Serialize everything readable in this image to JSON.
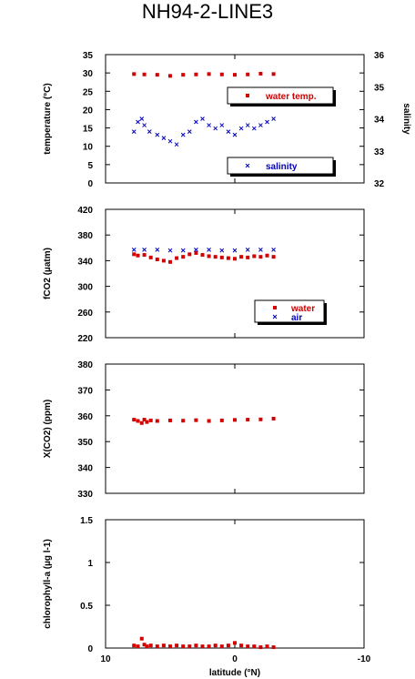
{
  "title": "NH94-2-LINE3",
  "x_axis": {
    "label": "latitude (°N)",
    "range": [
      10,
      -10
    ],
    "ticks": [
      10,
      0,
      -10
    ]
  },
  "chart_data": [
    {
      "type": "scatter",
      "ylabel": "temperature (°C)",
      "ylim": [
        0,
        35
      ],
      "yticks": [
        0,
        5,
        10,
        15,
        20,
        25,
        30,
        35
      ],
      "y2label": "salinity",
      "y2lim": [
        32,
        36
      ],
      "y2ticks": [
        32,
        33,
        34,
        35,
        36
      ],
      "series": [
        {
          "name": "water temp.",
          "axis": "left",
          "color": "#d20000",
          "marker": "square",
          "x": [
            7.8,
            7.0,
            6.0,
            5.0,
            4.0,
            3.0,
            2.0,
            1.0,
            0.0,
            -1.0,
            -2.0,
            -3.0
          ],
          "y": [
            29.7,
            29.6,
            29.5,
            29.2,
            29.5,
            29.6,
            29.7,
            29.6,
            29.5,
            29.6,
            29.8,
            29.7
          ]
        },
        {
          "name": "salinity",
          "axis": "right",
          "color": "#0000c0",
          "marker": "x",
          "x": [
            7.8,
            7.5,
            7.2,
            7.0,
            6.6,
            6.0,
            5.5,
            5.0,
            4.5,
            4.0,
            3.5,
            3.0,
            2.5,
            2.0,
            1.5,
            1.0,
            0.5,
            0.0,
            -0.5,
            -1.0,
            -1.5,
            -2.0,
            -2.5,
            -3.0
          ],
          "y": [
            33.6,
            33.9,
            34.0,
            33.8,
            33.6,
            33.5,
            33.4,
            33.3,
            33.2,
            33.5,
            33.6,
            33.9,
            34.0,
            33.8,
            33.7,
            33.8,
            33.6,
            33.5,
            33.7,
            33.8,
            33.7,
            33.8,
            33.9,
            34.0
          ]
        }
      ]
    },
    {
      "type": "scatter",
      "ylabel": "fCO2 (µatm)",
      "ylim": [
        220,
        420
      ],
      "yticks": [
        220,
        260,
        300,
        340,
        380,
        420
      ],
      "series": [
        {
          "name": "water",
          "color": "#d20000",
          "marker": "square",
          "x": [
            7.8,
            7.5,
            7.0,
            6.5,
            6.0,
            5.5,
            5.0,
            4.5,
            4.0,
            3.5,
            3.0,
            2.5,
            2.0,
            1.5,
            1.0,
            0.5,
            0.0,
            -0.5,
            -1.0,
            -1.5,
            -2.0,
            -2.5,
            -3.0
          ],
          "y": [
            350,
            348,
            349,
            345,
            342,
            340,
            338,
            344,
            346,
            350,
            352,
            349,
            347,
            346,
            345,
            344,
            343,
            346,
            345,
            347,
            346,
            348,
            346
          ]
        },
        {
          "name": "air",
          "color": "#0000c0",
          "marker": "x",
          "x": [
            7.8,
            7.0,
            6.0,
            5.0,
            4.0,
            3.0,
            2.0,
            1.0,
            0.0,
            -1.0,
            -2.0,
            -3.0
          ],
          "y": [
            357,
            357,
            357,
            356,
            356,
            357,
            357,
            356,
            356,
            357,
            357,
            357
          ]
        }
      ]
    },
    {
      "type": "scatter",
      "ylabel": "X(CO2) (ppm)",
      "ylim": [
        330,
        380
      ],
      "yticks": [
        330,
        340,
        350,
        360,
        370,
        380
      ],
      "series": [
        {
          "name": "",
          "color": "#d20000",
          "marker": "square",
          "x": [
            7.8,
            7.5,
            7.2,
            7.0,
            6.8,
            6.5,
            6.0,
            5.0,
            4.0,
            3.0,
            2.0,
            1.0,
            0.0,
            -1.0,
            -2.0,
            -3.0
          ],
          "y": [
            358.5,
            358.0,
            357.2,
            358.5,
            357.6,
            358.2,
            358.0,
            358.2,
            358.1,
            358.3,
            358.0,
            358.2,
            358.4,
            358.5,
            358.6,
            358.9
          ]
        }
      ]
    },
    {
      "type": "scatter",
      "ylabel": "chlorophyll-a (µg l-1)",
      "ylim": [
        0,
        1.5
      ],
      "yticks": [
        0,
        0.5,
        1,
        1.5
      ],
      "series": [
        {
          "name": "",
          "color": "#d20000",
          "marker": "square",
          "x": [
            7.8,
            7.5,
            7.2,
            7.0,
            6.8,
            6.5,
            6.0,
            5.5,
            5.0,
            4.5,
            4.0,
            3.5,
            3.0,
            2.5,
            2.0,
            1.5,
            1.0,
            0.5,
            0.0,
            -0.5,
            -1.0,
            -1.5,
            -2.0,
            -2.5,
            -3.0
          ],
          "y": [
            0.03,
            0.02,
            0.11,
            0.04,
            0.02,
            0.03,
            0.02,
            0.03,
            0.02,
            0.03,
            0.02,
            0.02,
            0.03,
            0.02,
            0.02,
            0.03,
            0.02,
            0.03,
            0.06,
            0.03,
            0.02,
            0.02,
            0.01,
            0.02,
            0.01
          ]
        }
      ]
    }
  ]
}
